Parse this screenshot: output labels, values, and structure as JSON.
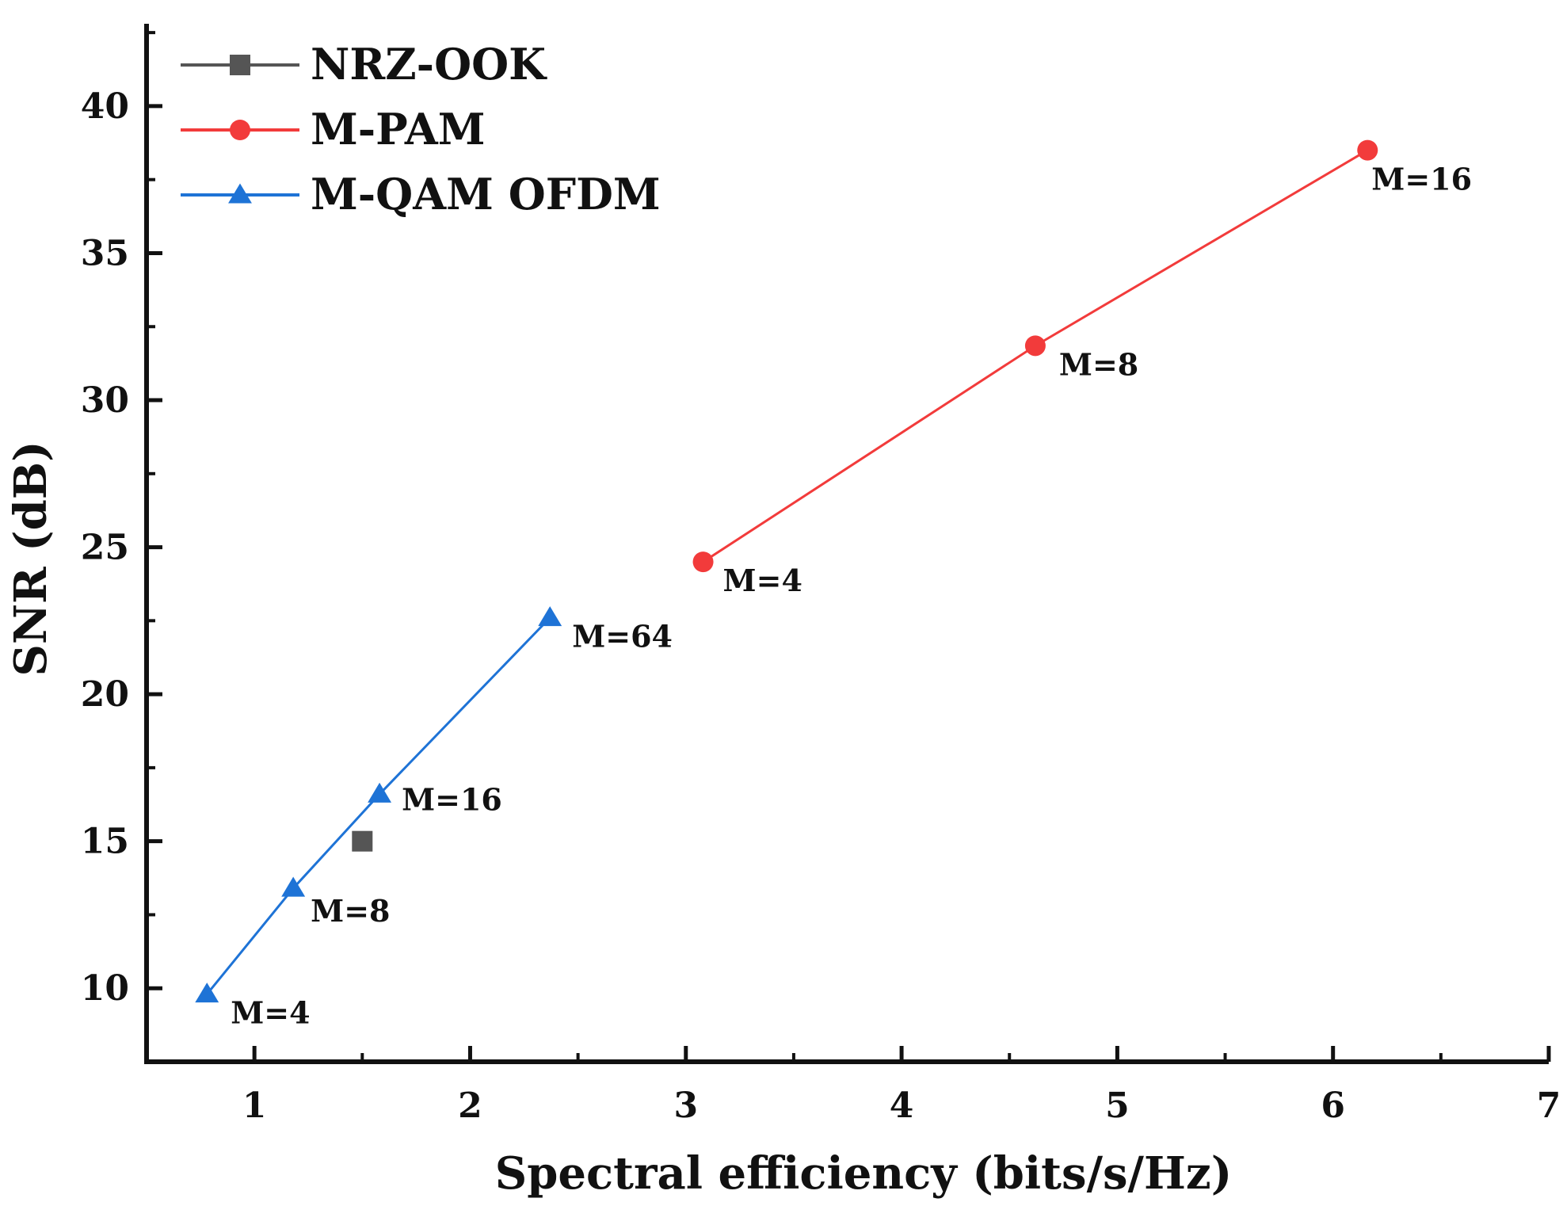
{
  "chart_data": {
    "type": "line",
    "title": "",
    "xlabel": "Spectral efficiency (bits/s/Hz)",
    "ylabel": "SNR (dB)",
    "xlim": [
      0.5,
      7
    ],
    "ylim": [
      7.5,
      42.8
    ],
    "xticks": [
      1,
      2,
      3,
      4,
      5,
      6,
      7
    ],
    "yticks": [
      10,
      15,
      20,
      25,
      30,
      35,
      40
    ],
    "xtick_labels": [
      "1",
      "2",
      "3",
      "4",
      "5",
      "6",
      "7"
    ],
    "ytick_labels": [
      "10",
      "15",
      "20",
      "25",
      "30",
      "35",
      "40"
    ],
    "grid": false,
    "legend_position": "top-left",
    "series": [
      {
        "name": "NRZ-OOK",
        "color": "#555555",
        "marker": "square",
        "points": [
          {
            "x": 1.5,
            "y": 15.0,
            "label": ""
          }
        ]
      },
      {
        "name": "M-PAM",
        "color": "#f23b3b",
        "marker": "circle",
        "points": [
          {
            "x": 3.08,
            "y": 24.5,
            "label": "M=4"
          },
          {
            "x": 4.62,
            "y": 31.85,
            "label": "M=8"
          },
          {
            "x": 6.16,
            "y": 38.5,
            "label": "M=16"
          }
        ]
      },
      {
        "name": "M-QAM OFDM",
        "color": "#1e73d6",
        "marker": "triangle",
        "points": [
          {
            "x": 0.78,
            "y": 9.8,
            "label": "M=4"
          },
          {
            "x": 1.18,
            "y": 13.4,
            "label": "M=8"
          },
          {
            "x": 1.58,
            "y": 16.6,
            "label": "M=16"
          },
          {
            "x": 2.37,
            "y": 22.6,
            "label": "M=64"
          }
        ]
      }
    ]
  }
}
